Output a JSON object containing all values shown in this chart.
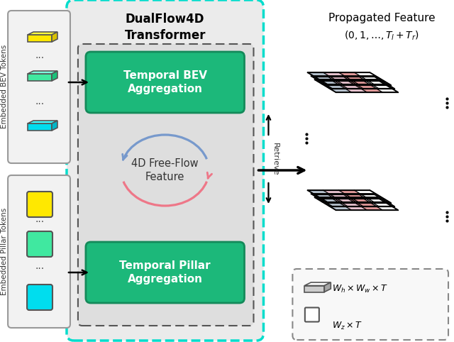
{
  "title": "DualFlow4D\nTransformer",
  "bev_label": "Embedded BEV Tokens",
  "pillar_label": "Embedded Pillar Tokens",
  "bev_box_label": "Temporal BEV\nAggregation",
  "pillar_box_label": "Temporal Pillar\nAggregation",
  "freeflow_label": "4D Free-Flow\nFeature",
  "propagated_label": "Propagated Feature",
  "propagated_sub": "$(0, 1, \\ldots, T_l + T_r)$",
  "retrieve_label": "Retrieve",
  "legend_label1": "$W_h \\times W_w \\times T$",
  "legend_label2": "$W_z \\times T$",
  "bev_colors": [
    "#FFE800",
    "#40E8A0",
    "#00DDEE"
  ],
  "pillar_colors": [
    "#FFE800",
    "#40E8A0",
    "#00DDEE"
  ],
  "teal_border": "#00DDCC",
  "green_box_color": "#1CB87A",
  "green_box_border": "#148A5A",
  "blue_arrow": "#7799CC",
  "red_arrow": "#EE7788",
  "grid_color_red": "#DD8888",
  "grid_color_blue": "#99AABB",
  "grid_color_pink": "#DDAABB"
}
